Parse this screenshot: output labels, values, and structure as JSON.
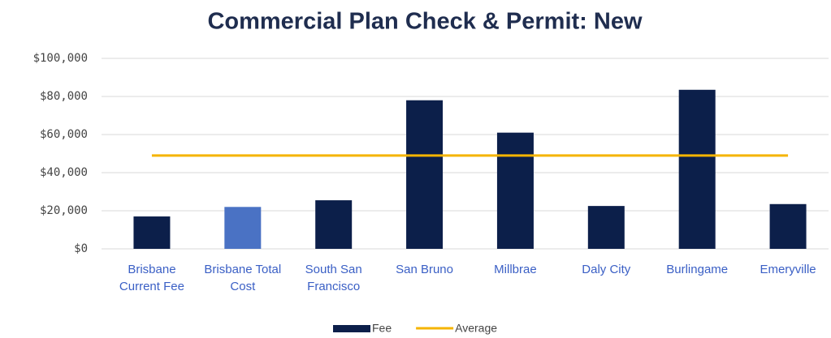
{
  "chart_data": {
    "type": "bar",
    "title": "Commercial Plan Check & Permit: New",
    "categories": [
      "Brisbane Current Fee",
      "Brisbane Total Cost",
      "South San Francisco",
      "San Bruno",
      "Millbrae",
      "Daly City",
      "Burlingame",
      "Emeryville"
    ],
    "series": [
      {
        "name": "Fee",
        "type": "bar",
        "color": "#0c1f4a",
        "colors": [
          "#0c1f4a",
          "#4a72c4",
          "#0c1f4a",
          "#0c1f4a",
          "#0c1f4a",
          "#0c1f4a",
          "#0c1f4a",
          "#0c1f4a"
        ],
        "values": [
          17000,
          22000,
          25500,
          78000,
          61000,
          22500,
          83500,
          23500
        ]
      },
      {
        "name": "Average",
        "type": "line",
        "color": "#f5b400",
        "values": [
          49000,
          49000,
          49000,
          49000,
          49000,
          49000,
          49000,
          49000
        ]
      }
    ],
    "ylim": [
      0,
      100000
    ],
    "yticks": [
      {
        "value": 0,
        "label": "$0"
      },
      {
        "value": 20000,
        "label": "$20,000"
      },
      {
        "value": 40000,
        "label": "$40,000"
      },
      {
        "value": 60000,
        "label": "$60,000"
      },
      {
        "value": 80000,
        "label": "$80,000"
      },
      {
        "value": 100000,
        "label": "$100,000"
      }
    ],
    "grid": true,
    "legend": "bottom"
  }
}
